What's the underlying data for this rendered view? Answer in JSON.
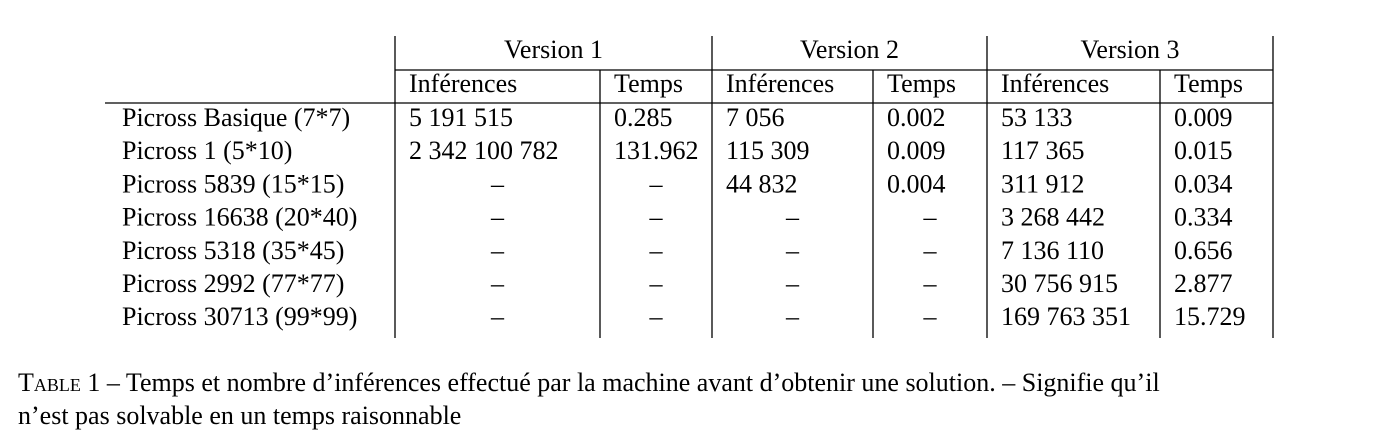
{
  "table": {
    "groups": [
      "Version 1",
      "Version 2",
      "Version 3"
    ],
    "subheaders": [
      "Inférences",
      "Temps",
      "Inférences",
      "Temps",
      "Inférences",
      "Temps"
    ],
    "rows": [
      [
        "Picross Basique (7*7)",
        "5 191 515",
        "0.285",
        "7 056",
        "0.002",
        "53 133",
        "0.009"
      ],
      [
        "Picross 1 (5*10)",
        "2 342 100 782",
        "131.962",
        "115 309",
        "0.009",
        "117 365",
        "0.015"
      ],
      [
        "Picross 5839 (15*15)",
        "–",
        "–",
        "44 832",
        "0.004",
        "311 912",
        "0.034"
      ],
      [
        "Picross 16638 (20*40)",
        "–",
        "–",
        "–",
        "–",
        "3 268 442",
        "0.334"
      ],
      [
        "Picross 5318 (35*45)",
        "–",
        "–",
        "–",
        "–",
        "7 136 110",
        "0.656"
      ],
      [
        "Picross 2992 (77*77)",
        "–",
        "–",
        "–",
        "–",
        "30 756 915",
        "2.877"
      ],
      [
        "Picross 30713 (99*99)",
        "–",
        "–",
        "–",
        "–",
        "169 763 351",
        "15.729"
      ]
    ]
  },
  "caption": {
    "label": "Table 1",
    "lines": [
      "– Temps et nombre d’inférences effectué par la machine avant d’obtenir une solution. – Signifie qu’il",
      "n’est pas solvable en un temps raisonnable"
    ]
  }
}
